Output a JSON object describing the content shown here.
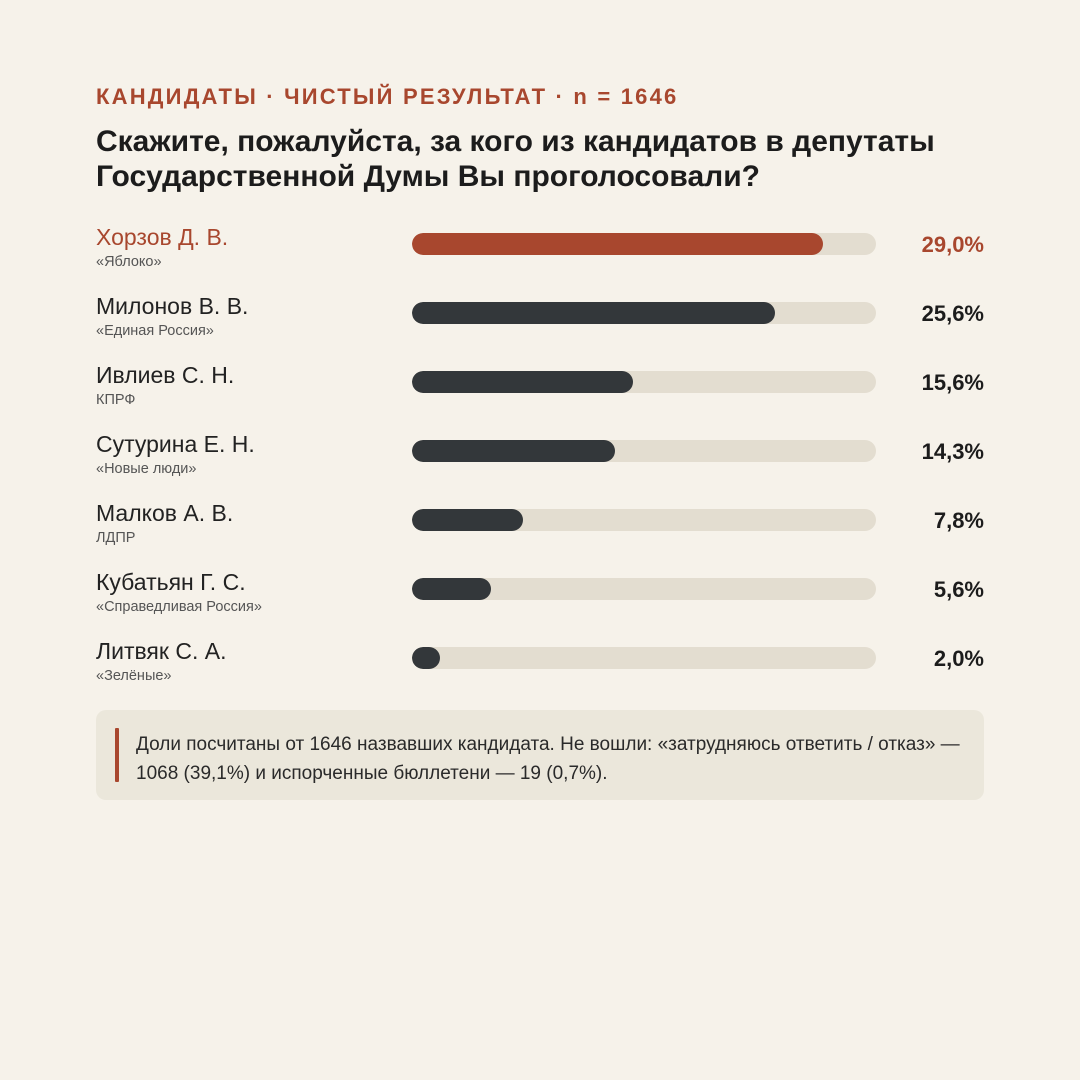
{
  "header": {
    "kicker": "КАНДИДАТЫ · ЧИСТЫЙ РЕЗУЛЬТАТ · n = 1646",
    "title": "Скажите, пожалуйста, за кого из кандидатов в депутаты Государственной Думы Вы проголосовали?"
  },
  "colors": {
    "accent": "#a8472e",
    "bar": "#33373a",
    "track": "#e3ddd0",
    "background": "#f6f2ea"
  },
  "chart_data": {
    "type": "bar",
    "orientation": "horizontal",
    "categories": [
      "Хорзов Д. В.",
      "Милонов В. В.",
      "Ивлиев С. Н.",
      "Сутурина Е. Н.",
      "Малков А. В.",
      "Кубатьян Г. С.",
      "Литвяк С. А."
    ],
    "parties": [
      "«Яблоко»",
      "«Единая Россия»",
      "КПРФ",
      "«Новые люди»",
      "ЛДПР",
      "«Справедливая Россия»",
      "«Зелёные»"
    ],
    "values": [
      29.0,
      25.6,
      15.6,
      14.3,
      7.8,
      5.6,
      2.0
    ],
    "value_labels": [
      "29,0%",
      "25,6%",
      "15,6%",
      "14,3%",
      "7,8%",
      "5,6%",
      "2,0%"
    ],
    "xlim": [
      0,
      32.7
    ],
    "highlight_index": 0,
    "grid": false
  },
  "footnote": {
    "text": "Доли посчитаны от 1646 назвавших кандидата. Не вошли: «затрудняюсь ответить / отказ» — 1068 (39,1%) и испорченные бюллетени — 19 (0,7%)."
  }
}
